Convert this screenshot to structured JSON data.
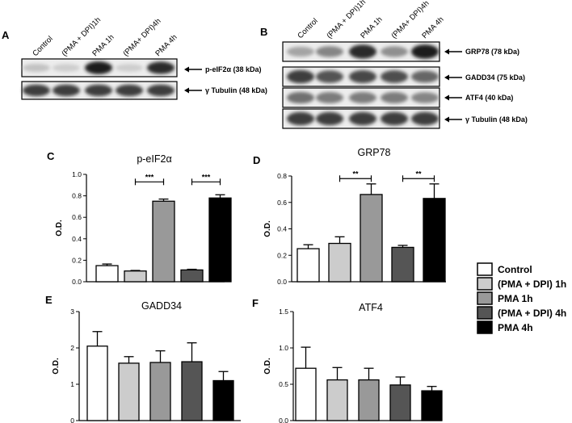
{
  "blots": {
    "A": {
      "letter": "A",
      "lanes": [
        "Control",
        "(PMA + DPI)1h",
        "PMA 1h",
        "(PMA+ DPI)4h",
        "PMA 4h"
      ],
      "bands": [
        {
          "label": "p-eIF2α (38 kDa)",
          "intensity": [
            0.15,
            0.1,
            0.95,
            0.1,
            0.9
          ]
        },
        {
          "label": "γ Tubulin (48 kDa)",
          "intensity": [
            0.8,
            0.8,
            0.8,
            0.8,
            0.8
          ]
        }
      ]
    },
    "B": {
      "letter": "B",
      "lanes": [
        "Control",
        "(PMA + DPI)1h",
        "PMA 1h",
        "(PMA+ DPI)4h",
        "PMA 4h"
      ],
      "bands": [
        {
          "label": "GRP78 (78 kDa)",
          "intensity": [
            0.3,
            0.45,
            0.9,
            0.4,
            0.95
          ]
        },
        {
          "label": "GADD34 (75 kDa)",
          "intensity": [
            0.8,
            0.7,
            0.75,
            0.72,
            0.6
          ]
        },
        {
          "label": "ATF4 (40 kDa)",
          "intensity": [
            0.55,
            0.5,
            0.5,
            0.5,
            0.45
          ]
        },
        {
          "label": "γ Tubulin (48 kDa)",
          "intensity": [
            0.8,
            0.8,
            0.8,
            0.8,
            0.8
          ]
        }
      ]
    }
  },
  "legend": {
    "entries": [
      {
        "label": "Control",
        "color": "#ffffff"
      },
      {
        "label": "(PMA + DPI) 1h",
        "color": "#cccccc"
      },
      {
        "label": "PMA 1h",
        "color": "#999999"
      },
      {
        "label": "(PMA + DPI) 4h",
        "color": "#555555"
      },
      {
        "label": "PMA 4h",
        "color": "#000000"
      }
    ]
  },
  "chart_data": [
    {
      "type": "bar",
      "letter": "C",
      "title": "p-eIF2α",
      "ylabel": "O.D.",
      "ylim": [
        0,
        1.0
      ],
      "yticks": [
        "0.0",
        "0.2",
        "0.4",
        "0.6",
        "0.8",
        "1.0"
      ],
      "categories": [
        "Control",
        "(PMA + DPI) 1h",
        "PMA 1h",
        "(PMA + DPI) 4h",
        "PMA 4h"
      ],
      "values": [
        0.15,
        0.1,
        0.75,
        0.11,
        0.78
      ],
      "errors": [
        0.015,
        0.005,
        0.02,
        0.006,
        0.03
      ],
      "significance": [
        {
          "from": 1,
          "to": 2,
          "label": "***",
          "y": 0.93
        },
        {
          "from": 3,
          "to": 4,
          "label": "***",
          "y": 0.93
        }
      ]
    },
    {
      "type": "bar",
      "letter": "D",
      "title": "GRP78",
      "ylabel": "O.D.",
      "ylim": [
        0,
        0.8
      ],
      "yticks": [
        "0.0",
        "0.2",
        "0.4",
        "0.6",
        "0.8"
      ],
      "categories": [
        "Control",
        "(PMA + DPI) 1h",
        "PMA 1h",
        "(PMA + DPI) 4h",
        "PMA 4h"
      ],
      "values": [
        0.25,
        0.29,
        0.66,
        0.26,
        0.63
      ],
      "errors": [
        0.03,
        0.05,
        0.08,
        0.015,
        0.11
      ],
      "significance": [
        {
          "from": 1,
          "to": 2,
          "label": "**",
          "y": 0.78
        },
        {
          "from": 3,
          "to": 4,
          "label": "**",
          "y": 0.78
        }
      ]
    },
    {
      "type": "bar",
      "letter": "E",
      "title": "GADD34",
      "ylabel": "O.D.",
      "ylim": [
        0,
        3
      ],
      "yticks": [
        "0",
        "1",
        "2",
        "3"
      ],
      "categories": [
        "Control",
        "(PMA + DPI) 1h",
        "PMA 1h",
        "(PMA + DPI) 4h",
        "PMA 4h"
      ],
      "values": [
        2.05,
        1.58,
        1.6,
        1.62,
        1.1
      ],
      "errors": [
        0.4,
        0.18,
        0.32,
        0.52,
        0.25
      ],
      "significance": []
    },
    {
      "type": "bar",
      "letter": "F",
      "title": "ATF4",
      "ylabel": "O.D.",
      "ylim": [
        0,
        1.5
      ],
      "yticks": [
        "0.0",
        "0.5",
        "1.0",
        "1.5"
      ],
      "categories": [
        "Control",
        "(PMA + DPI) 1h",
        "PMA 1h",
        "(PMA + DPI) 4h",
        "PMA 4h"
      ],
      "values": [
        0.72,
        0.56,
        0.56,
        0.49,
        0.41
      ],
      "errors": [
        0.29,
        0.17,
        0.16,
        0.11,
        0.06
      ],
      "significance": []
    }
  ]
}
